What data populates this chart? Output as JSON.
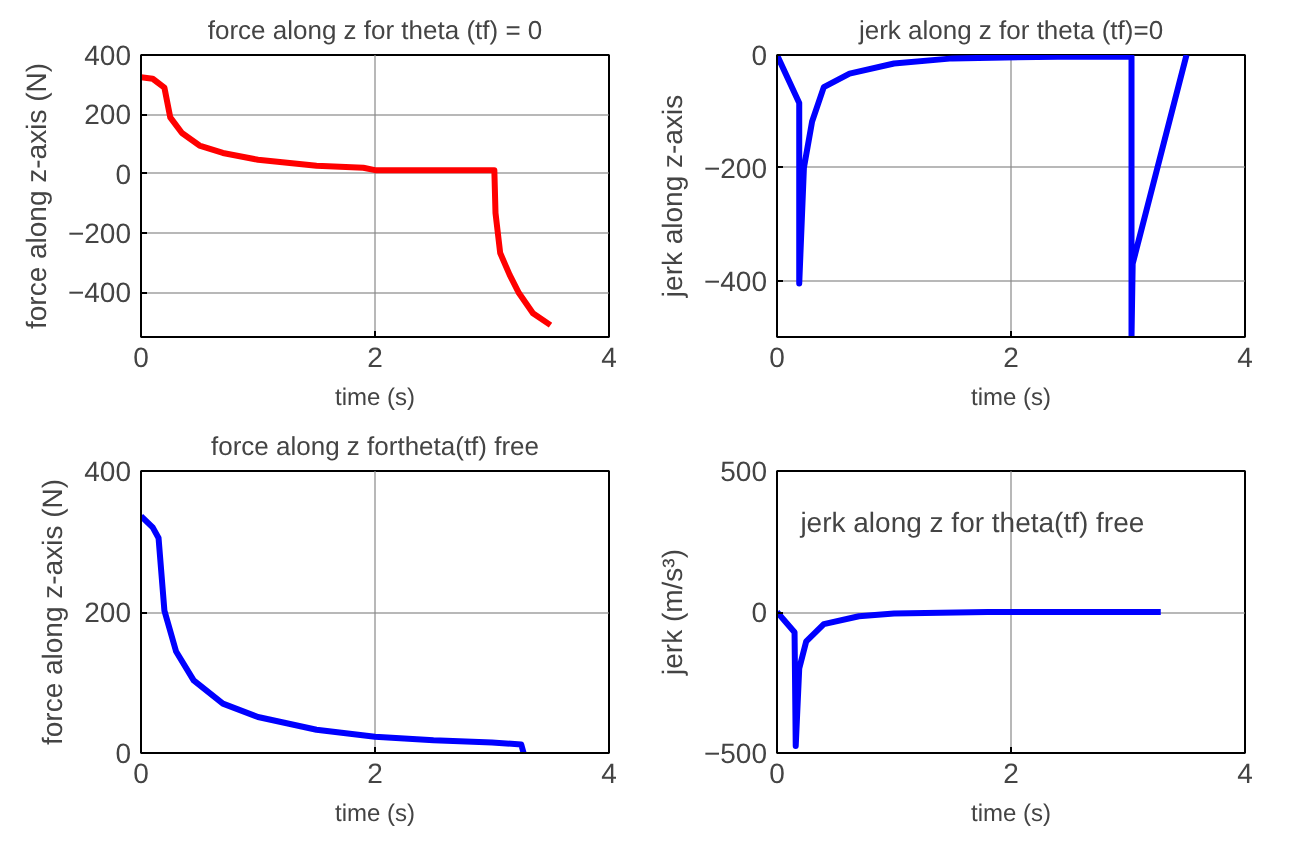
{
  "chart_data": [
    {
      "type": "line",
      "title": "force along z for theta (tf) = 0",
      "xlabel": "time (s)",
      "ylabel": "force along z-axis (N)",
      "xlim": [
        0,
        4
      ],
      "xticks": [
        0,
        2,
        4
      ],
      "ylim": [
        -550,
        400
      ],
      "yticks": [
        -400,
        -200,
        0,
        200,
        400
      ],
      "grid": true,
      "x": [
        0,
        0.1,
        0.2,
        0.25,
        0.35,
        0.5,
        0.7,
        1.0,
        1.5,
        1.9,
        2.0,
        3.02,
        3.03,
        3.07,
        3.15,
        3.23,
        3.35,
        3.5
      ],
      "series": [
        {
          "color": "#ff0000",
          "values": [
            325,
            320,
            290,
            190,
            137,
            95,
            70,
            47,
            27,
            20,
            12,
            12,
            -133,
            -267,
            -340,
            -402,
            -470,
            -510
          ]
        }
      ]
    },
    {
      "type": "line",
      "title": "jerk along z for theta (tf)=0",
      "xlabel": "time (s)",
      "ylabel": "jerk along z-axis",
      "xlim": [
        0,
        4
      ],
      "xticks": [
        0,
        2,
        4
      ],
      "ylim": [
        -500,
        0
      ],
      "yticks": [
        -400,
        -200,
        0
      ],
      "grid": true,
      "x": [
        0,
        0.19,
        0.19,
        0.23,
        0.3,
        0.4,
        0.62,
        1.0,
        1.5,
        2.4,
        3.03,
        3.03,
        3.04,
        3.5
      ],
      "series": [
        {
          "color": "#0000ff",
          "values": [
            0,
            -85,
            -405,
            -200,
            -118,
            -57,
            -33,
            -15,
            -6,
            -3,
            -3,
            -500,
            -370,
            0
          ]
        }
      ]
    },
    {
      "type": "line",
      "title": "force along z fortheta(tf) free",
      "xlabel": "time (s)",
      "ylabel": "force along z-axis (N)",
      "xlim": [
        0,
        4
      ],
      "xticks": [
        0,
        2,
        4
      ],
      "ylim": [
        0,
        400
      ],
      "yticks": [
        0,
        200,
        400
      ],
      "grid": true,
      "x": [
        0,
        0.1,
        0.15,
        0.2,
        0.3,
        0.45,
        0.7,
        1.0,
        1.5,
        2.0,
        2.5,
        3.0,
        3.25,
        3.27
      ],
      "series": [
        {
          "color": "#0000ff",
          "values": [
            336,
            320,
            305,
            202,
            144,
            103,
            70,
            51,
            33,
            23,
            18,
            15,
            12,
            0
          ]
        }
      ]
    },
    {
      "type": "line",
      "annotations": [
        "jerk along z for theta(tf) free"
      ],
      "xlabel": "time (s)",
      "ylabel": "jerk (m/s³)",
      "xlim": [
        0,
        4
      ],
      "xticks": [
        0,
        2,
        4
      ],
      "ylim": [
        -500,
        500
      ],
      "yticks": [
        -500,
        0,
        500
      ],
      "grid": true,
      "x": [
        0,
        0.15,
        0.16,
        0.19,
        0.25,
        0.4,
        0.7,
        1.0,
        1.8,
        3.28
      ],
      "series": [
        {
          "color": "#0000ff",
          "values": [
            0,
            -72,
            -475,
            -200,
            -104,
            -43,
            -15,
            -5,
            0,
            0
          ]
        }
      ]
    }
  ]
}
